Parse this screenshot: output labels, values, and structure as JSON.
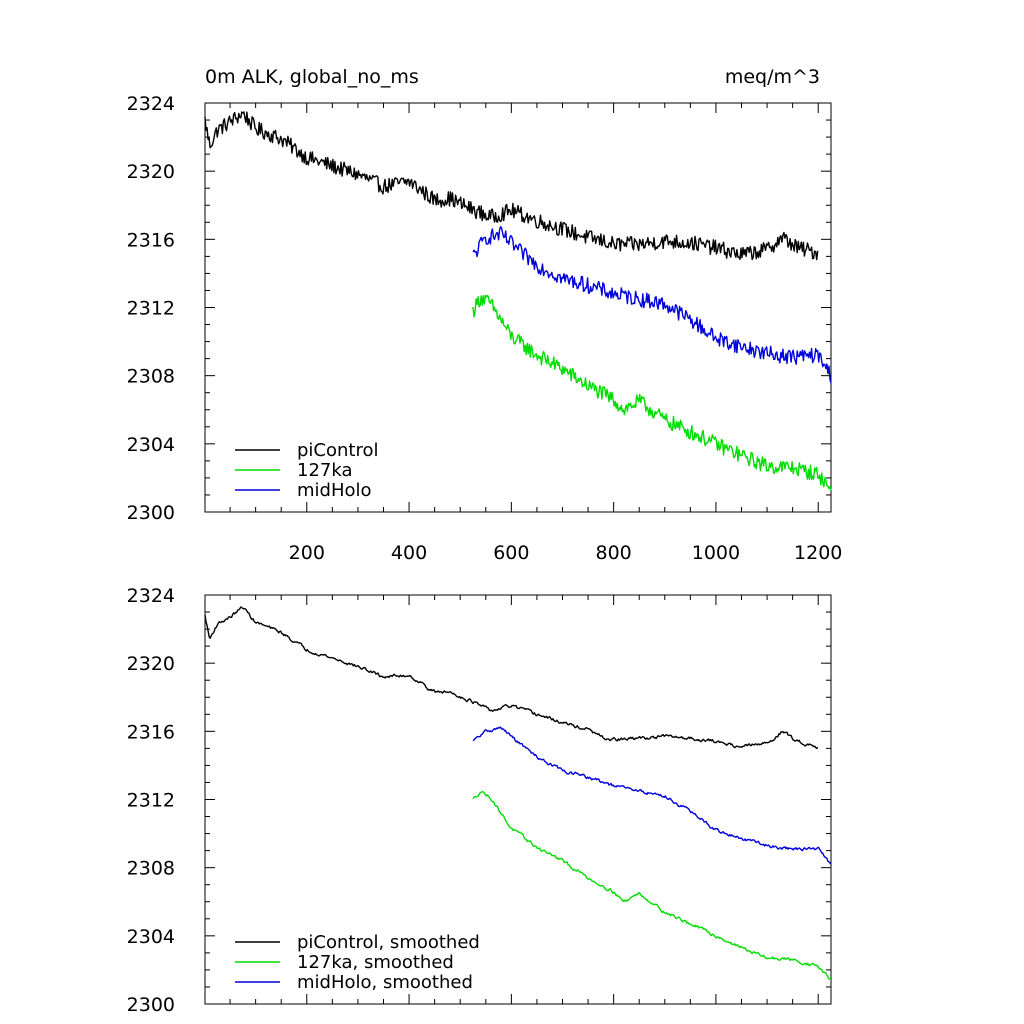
{
  "chart_data": [
    {
      "type": "line",
      "title": "0m ALK, global_no_ms",
      "units": "meq/m^3",
      "xlim": [
        1,
        1225
      ],
      "ylim": [
        2300,
        2324
      ],
      "xticks": [
        "200",
        "400",
        "600",
        "800",
        "1000",
        "1200"
      ],
      "yticks": [
        "2300",
        "2304",
        "2308",
        "2312",
        "2316",
        "2320",
        "2324"
      ],
      "series": [
        {
          "name": "piControl",
          "color": "#000000",
          "points": [
            [
              1,
              2323.0
            ],
            [
              10,
              2321.5
            ],
            [
              25,
              2322.4
            ],
            [
              50,
              2322.9
            ],
            [
              75,
              2323.4
            ],
            [
              100,
              2322.5
            ],
            [
              150,
              2321.9
            ],
            [
              200,
              2320.8
            ],
            [
              250,
              2320.3
            ],
            [
              300,
              2319.8
            ],
            [
              350,
              2319.1
            ],
            [
              400,
              2319.4
            ],
            [
              450,
              2318.3
            ],
            [
              480,
              2318.4
            ],
            [
              520,
              2317.8
            ],
            [
              560,
              2317.3
            ],
            [
              600,
              2317.7
            ],
            [
              650,
              2317.1
            ],
            [
              700,
              2316.6
            ],
            [
              750,
              2316.1
            ],
            [
              780,
              2315.9
            ],
            [
              800,
              2315.7
            ],
            [
              850,
              2315.7
            ],
            [
              900,
              2315.9
            ],
            [
              950,
              2315.8
            ],
            [
              1000,
              2315.5
            ],
            [
              1050,
              2315.1
            ],
            [
              1100,
              2315.4
            ],
            [
              1130,
              2316.1
            ],
            [
              1160,
              2315.5
            ],
            [
              1200,
              2315.2
            ]
          ],
          "jitter": 0.45
        },
        {
          "name": "127ka",
          "color": "#00dd00",
          "points": [
            [
              525,
              2311.8
            ],
            [
              540,
              2312.6
            ],
            [
              560,
              2312.2
            ],
            [
              600,
              2310.3
            ],
            [
              650,
              2309.2
            ],
            [
              700,
              2308.4
            ],
            [
              750,
              2307.4
            ],
            [
              800,
              2306.6
            ],
            [
              820,
              2306.0
            ],
            [
              850,
              2306.5
            ],
            [
              900,
              2305.4
            ],
            [
              950,
              2304.7
            ],
            [
              1000,
              2304.0
            ],
            [
              1050,
              2303.3
            ],
            [
              1100,
              2302.7
            ],
            [
              1150,
              2302.6
            ],
            [
              1200,
              2302.2
            ],
            [
              1225,
              2301.3
            ]
          ],
          "jitter": 0.45
        },
        {
          "name": "midHolo",
          "color": "#0000dd",
          "points": [
            [
              525,
              2315.0
            ],
            [
              550,
              2316.1
            ],
            [
              580,
              2316.3
            ],
            [
              620,
              2315.2
            ],
            [
              650,
              2314.5
            ],
            [
              700,
              2313.7
            ],
            [
              750,
              2313.3
            ],
            [
              800,
              2312.8
            ],
            [
              850,
              2312.5
            ],
            [
              900,
              2312.2
            ],
            [
              950,
              2311.3
            ],
            [
              1000,
              2310.2
            ],
            [
              1050,
              2309.7
            ],
            [
              1100,
              2309.3
            ],
            [
              1150,
              2309.1
            ],
            [
              1200,
              2309.2
            ],
            [
              1225,
              2308.0
            ]
          ],
          "jitter": 0.45
        }
      ]
    },
    {
      "type": "line",
      "xlim": [
        1,
        1225
      ],
      "ylim": [
        2300,
        2324
      ],
      "yticks": [
        "2300",
        "2304",
        "2308",
        "2312",
        "2316",
        "2320",
        "2324"
      ],
      "series": [
        {
          "name": "piControl, smoothed",
          "color": "#000000",
          "points": [
            [
              1,
              2322.8
            ],
            [
              10,
              2321.4
            ],
            [
              25,
              2322.3
            ],
            [
              50,
              2322.7
            ],
            [
              75,
              2323.3
            ],
            [
              100,
              2322.4
            ],
            [
              150,
              2321.8
            ],
            [
              200,
              2320.8
            ],
            [
              250,
              2320.3
            ],
            [
              300,
              2319.8
            ],
            [
              350,
              2319.2
            ],
            [
              400,
              2319.3
            ],
            [
              450,
              2318.3
            ],
            [
              480,
              2318.3
            ],
            [
              520,
              2317.8
            ],
            [
              560,
              2317.2
            ],
            [
              600,
              2317.5
            ],
            [
              650,
              2317.0
            ],
            [
              700,
              2316.5
            ],
            [
              750,
              2316.1
            ],
            [
              780,
              2315.6
            ],
            [
              800,
              2315.5
            ],
            [
              850,
              2315.6
            ],
            [
              900,
              2315.7
            ],
            [
              950,
              2315.6
            ],
            [
              1000,
              2315.4
            ],
            [
              1050,
              2315.1
            ],
            [
              1100,
              2315.3
            ],
            [
              1130,
              2316.0
            ],
            [
              1160,
              2315.4
            ],
            [
              1200,
              2315.1
            ]
          ],
          "jitter": 0.2
        },
        {
          "name": "127ka, smoothed",
          "color": "#00dd00",
          "points": [
            [
              525,
              2312.0
            ],
            [
              540,
              2312.5
            ],
            [
              560,
              2312.1
            ],
            [
              600,
              2310.3
            ],
            [
              650,
              2309.2
            ],
            [
              700,
              2308.4
            ],
            [
              750,
              2307.4
            ],
            [
              800,
              2306.6
            ],
            [
              820,
              2306.0
            ],
            [
              850,
              2306.5
            ],
            [
              900,
              2305.4
            ],
            [
              950,
              2304.7
            ],
            [
              1000,
              2304.0
            ],
            [
              1050,
              2303.3
            ],
            [
              1100,
              2302.7
            ],
            [
              1150,
              2302.6
            ],
            [
              1200,
              2302.2
            ],
            [
              1225,
              2301.4
            ]
          ],
          "jitter": 0.2
        },
        {
          "name": "midHolo, smoothed",
          "color": "#0000dd",
          "points": [
            [
              525,
              2315.4
            ],
            [
              550,
              2316.0
            ],
            [
              580,
              2316.2
            ],
            [
              620,
              2315.2
            ],
            [
              650,
              2314.5
            ],
            [
              700,
              2313.7
            ],
            [
              750,
              2313.3
            ],
            [
              800,
              2312.8
            ],
            [
              850,
              2312.5
            ],
            [
              900,
              2312.2
            ],
            [
              950,
              2311.3
            ],
            [
              1000,
              2310.2
            ],
            [
              1050,
              2309.7
            ],
            [
              1100,
              2309.3
            ],
            [
              1150,
              2309.1
            ],
            [
              1200,
              2309.1
            ],
            [
              1225,
              2308.2
            ]
          ],
          "jitter": 0.2
        }
      ]
    }
  ]
}
